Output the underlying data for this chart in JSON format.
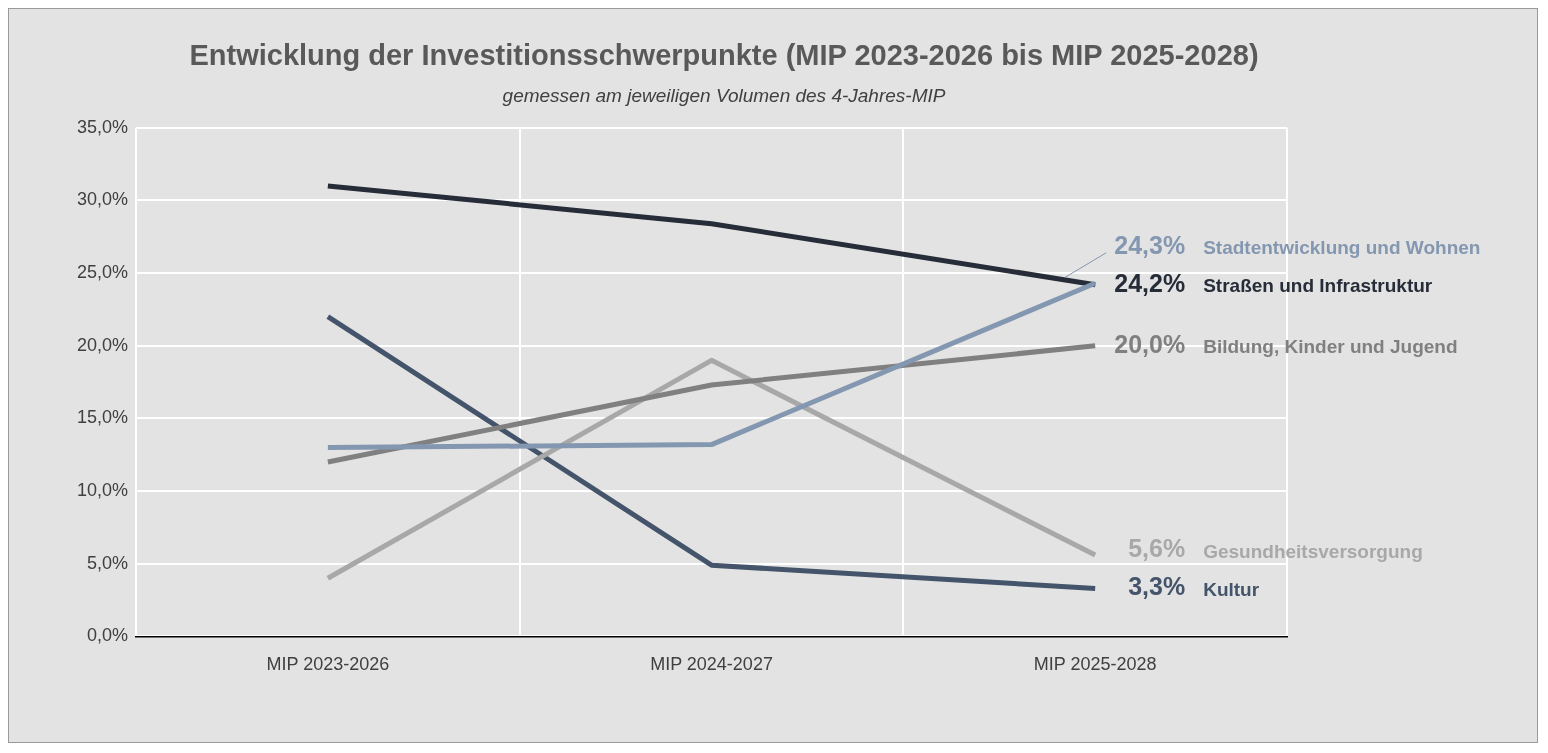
{
  "chart_data": {
    "type": "line",
    "title": "Entwicklung der Investitionsschwerpunkte (MIP 2023-2026 bis MIP 2025-2028)",
    "subtitle": "gemessen am jeweiligen Volumen des 4-Jahres-MIP",
    "categories": [
      "MIP 2023-2026",
      "MIP 2024-2027",
      "MIP 2025-2028"
    ],
    "ylim": [
      0,
      35
    ],
    "yticks": [
      {
        "value": 0,
        "label": "0,0%"
      },
      {
        "value": 5,
        "label": "5,0%"
      },
      {
        "value": 10,
        "label": "10,0%"
      },
      {
        "value": 15,
        "label": "15,0%"
      },
      {
        "value": 20,
        "label": "20,0%"
      },
      {
        "value": 25,
        "label": "25,0%"
      },
      {
        "value": 30,
        "label": "30,0%"
      },
      {
        "value": 35,
        "label": "35,0%"
      }
    ],
    "grid": true,
    "legend": false,
    "marker": "none",
    "line_style": "solid",
    "series": [
      {
        "name": "Stadtentwicklung und Wohnen",
        "color": "#8497b0",
        "values": [
          13.0,
          13.2,
          24.3
        ],
        "value_labels": [
          null,
          null,
          "24,3%"
        ]
      },
      {
        "name": "Straßen und Infrastruktur",
        "color": "#262c38",
        "values": [
          31.0,
          28.4,
          24.2
        ],
        "value_labels": [
          null,
          null,
          "24,2%"
        ]
      },
      {
        "name": "Bildung, Kinder und Jugend",
        "color": "#808080",
        "values": [
          12.0,
          17.3,
          20.0
        ],
        "value_labels": [
          null,
          null,
          "20,0%"
        ]
      },
      {
        "name": "Gesundheitsversorgung",
        "color": "#a8a8a8",
        "values": [
          4.0,
          19.0,
          5.6
        ],
        "value_labels": [
          null,
          null,
          "5,6%"
        ]
      },
      {
        "name": "Kultur",
        "color": "#44546a",
        "values": [
          22.0,
          4.9,
          3.3
        ],
        "value_labels": [
          null,
          null,
          "3,3%"
        ]
      }
    ]
  }
}
